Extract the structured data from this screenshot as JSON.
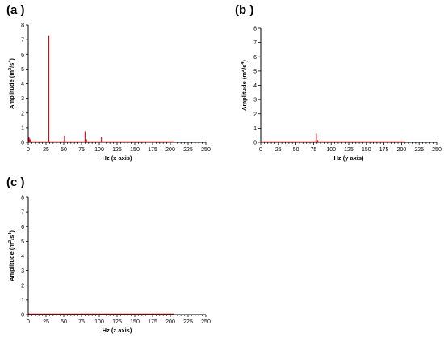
{
  "chart_data": [
    {
      "type": "line",
      "panel_label": "(a )",
      "xlabel": "Hz (x axis)",
      "ylabel_base": "Amplitude (m",
      "ylabel_sup1": "2",
      "ylabel_mid": "/s",
      "ylabel_sup2": "4",
      "ylabel_end": ")",
      "xlim": [
        0,
        250
      ],
      "ylim": [
        0,
        8
      ],
      "xticks": [
        "0",
        "25",
        "50",
        "75",
        "100",
        "125",
        "150",
        "175",
        "200",
        "225",
        "250"
      ],
      "yticks": [
        "0",
        "1",
        "2",
        "3",
        "4",
        "5",
        "6",
        "7",
        "8"
      ],
      "series_color": "#e8000b",
      "spectrum_range": [
        0,
        205
      ],
      "spikes": [
        {
          "x": 1,
          "y": 0.35
        },
        {
          "x": 2,
          "y": 0.25
        },
        {
          "x": 3,
          "y": 0.18
        },
        {
          "x": 29,
          "y": 7.3
        },
        {
          "x": 51,
          "y": 0.45
        },
        {
          "x": 80,
          "y": 0.75
        },
        {
          "x": 82,
          "y": 0.2
        },
        {
          "x": 103,
          "y": 0.35
        }
      ]
    },
    {
      "type": "line",
      "panel_label": "(b )",
      "xlabel": "Hz (y axis)",
      "ylabel_base": "Amplitude (m",
      "ylabel_sup1": "2",
      "ylabel_mid": "/s",
      "ylabel_sup2": "4",
      "ylabel_end": ")",
      "xlim": [
        0,
        250
      ],
      "ylim": [
        0,
        8
      ],
      "xticks": [
        "0",
        "25",
        "50",
        "75",
        "100",
        "125",
        "150",
        "175",
        "200",
        "225",
        "250"
      ],
      "yticks": [
        "0",
        "1",
        "2",
        "3",
        "4",
        "5",
        "6",
        "7",
        "8"
      ],
      "series_color": "#e8000b",
      "spectrum_range": [
        0,
        205
      ],
      "spikes": [
        {
          "x": 79,
          "y": 0.6
        },
        {
          "x": 81,
          "y": 0.15
        }
      ]
    },
    {
      "type": "line",
      "panel_label": "(c )",
      "xlabel": "Hz (z axis)",
      "ylabel_base": "Amplitude (m",
      "ylabel_sup1": "2",
      "ylabel_mid": "/s",
      "ylabel_sup2": "4",
      "ylabel_end": ")",
      "xlim": [
        0,
        250
      ],
      "ylim": [
        0,
        8
      ],
      "xticks": [
        "0",
        "25",
        "50",
        "75",
        "100",
        "125",
        "150",
        "175",
        "200",
        "225",
        "250"
      ],
      "yticks": [
        "0",
        "1",
        "2",
        "3",
        "4",
        "5",
        "6",
        "7",
        "8"
      ],
      "series_color": "#e8000b",
      "spectrum_range": [
        0,
        205
      ],
      "spikes": [
        {
          "x": 1,
          "y": 0.08
        }
      ]
    }
  ]
}
